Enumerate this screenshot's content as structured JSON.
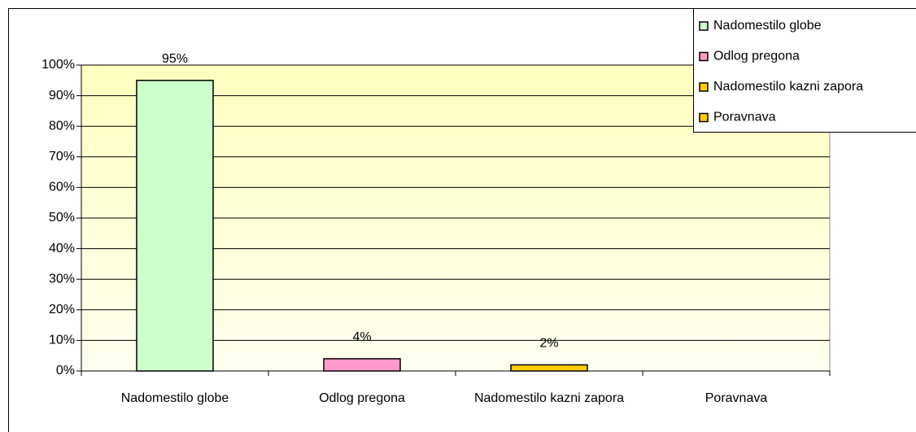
{
  "chart_data": {
    "type": "bar",
    "categories": [
      "Nadomestilo globe",
      "Odlog pregona",
      "Nadomestilo kazni zapora",
      "Poravnava"
    ],
    "values": [
      95,
      4,
      2,
      null
    ],
    "value_labels": [
      "95%",
      "4%",
      "2%",
      null
    ],
    "colors": [
      "#ccffcc",
      "#ff99cc",
      "#ffcc00",
      "#ffcc00"
    ],
    "ylim": [
      0,
      100
    ],
    "yticks": [
      {
        "value": 0,
        "label": "0%"
      },
      {
        "value": 10,
        "label": "10%"
      },
      {
        "value": 20,
        "label": "20%"
      },
      {
        "value": 30,
        "label": "30%"
      },
      {
        "value": 40,
        "label": "40%"
      },
      {
        "value": 50,
        "label": "50%"
      },
      {
        "value": 60,
        "label": "60%"
      },
      {
        "value": 70,
        "label": "70%"
      },
      {
        "value": 80,
        "label": "80%"
      },
      {
        "value": 90,
        "label": "90%"
      },
      {
        "value": 100,
        "label": "100%"
      }
    ],
    "grid": true,
    "legend": "top-right"
  }
}
